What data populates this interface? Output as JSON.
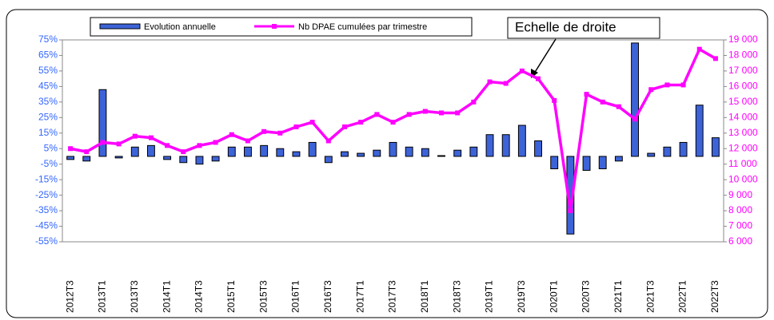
{
  "chart_data": {
    "type": "bar",
    "categories": [
      "2012T3",
      null,
      "2013T1",
      null,
      "2013T3",
      null,
      "2014T1",
      null,
      "2014T3",
      null,
      "2015T1",
      null,
      "2015T3",
      null,
      "2016T1",
      null,
      "2016T3",
      null,
      "2017T1",
      null,
      "2017T3",
      null,
      "2018T1",
      null,
      "2018T3",
      null,
      "2019T1",
      null,
      "2019T3",
      null,
      "2020T1",
      null,
      "2020T3",
      null,
      "2021T1",
      null,
      "2021T3",
      null,
      "2022T1",
      null,
      "2022T3"
    ],
    "series": [
      {
        "name": "Evolution annuelle",
        "type": "bar",
        "color": "#3d63d8",
        "axis": "y",
        "values": [
          -2,
          -3,
          43,
          -1,
          6,
          7,
          -2,
          -4,
          -5,
          -3,
          6,
          6,
          7,
          5,
          3,
          9,
          -4,
          3,
          2,
          4,
          9,
          6,
          5,
          0.5,
          4,
          6,
          14,
          14,
          20,
          10,
          -8,
          -50,
          -9,
          -8,
          -3,
          73,
          2,
          6,
          9,
          33,
          12
        ]
      },
      {
        "name": "Nb DPAE cumulées par trimestre",
        "type": "line",
        "color": "#ff00ff",
        "axis": "y2",
        "values": [
          12000,
          11800,
          12400,
          12300,
          12800,
          12700,
          12200,
          11800,
          12200,
          12400,
          12900,
          12500,
          13100,
          13000,
          13400,
          13700,
          12500,
          13400,
          13700,
          14200,
          13700,
          14200,
          14400,
          14300,
          14300,
          15000,
          16300,
          16200,
          17000,
          16500,
          15100,
          8000,
          15500,
          15000,
          14700,
          13900,
          15800,
          16100,
          16100,
          18400,
          17800
        ]
      }
    ],
    "ylim": [
      -55,
      75
    ],
    "yticks": [
      {
        "value": 75,
        "label": "75%"
      },
      {
        "value": 65,
        "label": "65%"
      },
      {
        "value": 55,
        "label": "55%"
      },
      {
        "value": 45,
        "label": "45%"
      },
      {
        "value": 35,
        "label": "35%"
      },
      {
        "value": 25,
        "label": "25%"
      },
      {
        "value": 15,
        "label": "15%"
      },
      {
        "value": 5,
        "label": "5%"
      },
      {
        "value": -5,
        "label": "-5%"
      },
      {
        "value": -15,
        "label": "-15%"
      },
      {
        "value": -25,
        "label": "-25%"
      },
      {
        "value": -35,
        "label": "-35%"
      },
      {
        "value": -45,
        "label": "-45%"
      },
      {
        "value": -55,
        "label": "-55%"
      }
    ],
    "y2lim": [
      6000,
      19000
    ],
    "y2ticks": [
      {
        "value": 19000,
        "label": "19 000"
      },
      {
        "value": 18000,
        "label": "18 000"
      },
      {
        "value": 17000,
        "label": "17 000"
      },
      {
        "value": 16000,
        "label": "16 000"
      },
      {
        "value": 15000,
        "label": "15 000"
      },
      {
        "value": 14000,
        "label": "14 000"
      },
      {
        "value": 13000,
        "label": "13 000"
      },
      {
        "value": 12000,
        "label": "12 000"
      },
      {
        "value": 11000,
        "label": "11 000"
      },
      {
        "value": 10000,
        "label": "10 000"
      },
      {
        "value": 9000,
        "label": "9 000"
      },
      {
        "value": 8000,
        "label": "8 000"
      },
      {
        "value": 7000,
        "label": "7 000"
      },
      {
        "value": 6000,
        "label": "6 000"
      }
    ],
    "annotation": "Echelle de droite",
    "grid": false,
    "legend": "top"
  }
}
